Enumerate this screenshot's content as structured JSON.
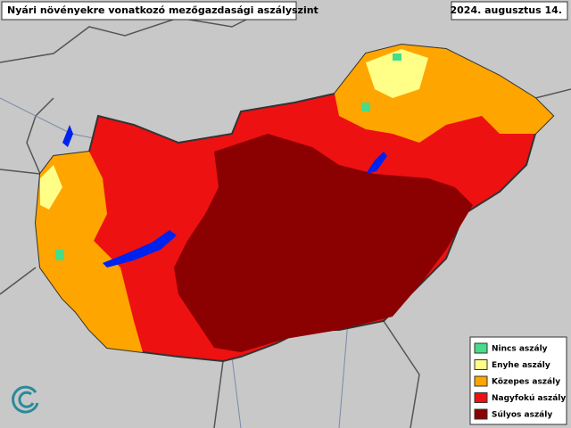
{
  "header": {
    "title": "Nyári növényekre vonatkozó mezőgazdasági aszályszint",
    "date": "2024. augusztus 14."
  },
  "legend": {
    "items": [
      {
        "label": "Nincs aszály",
        "color": "#44dd88"
      },
      {
        "label": "Enyhe aszály",
        "color": "#ffff88"
      },
      {
        "label": "Közepes aszály",
        "color": "#ffa500"
      },
      {
        "label": "Nagyfokú aszály",
        "color": "#ee1111"
      },
      {
        "label": "Súlyos aszály",
        "color": "#8b0000"
      }
    ]
  }
}
